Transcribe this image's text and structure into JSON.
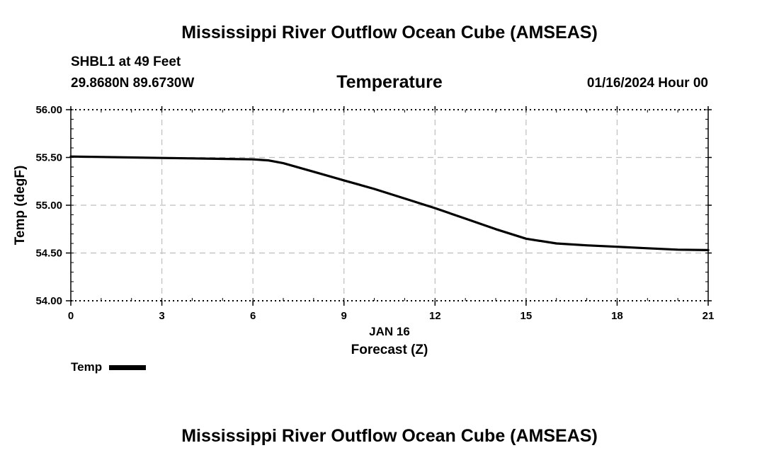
{
  "page": {
    "title_top": "Mississippi River Outflow Ocean Cube (AMSEAS)",
    "title_bottom": "Mississippi River Outflow Ocean Cube (AMSEAS)",
    "station": "SHBL1 at 49 Feet",
    "coords": "29.8680N  89.6730W",
    "variable": "Temperature",
    "datetime": "01/16/2024 Hour 00"
  },
  "chart_data": {
    "type": "line",
    "ylabel": "Temp (degF)",
    "xlabel_date": "JAN 16",
    "xlabel": "Forecast (Z)",
    "xlim": [
      0,
      21
    ],
    "ylim": [
      54.0,
      56.0
    ],
    "x_ticks": [
      0,
      3,
      6,
      9,
      12,
      15,
      18,
      21
    ],
    "x_tick_labels": [
      "0",
      "3",
      "6",
      "9",
      "12",
      "15",
      "18",
      "21"
    ],
    "y_ticks": [
      54.0,
      54.5,
      55.0,
      55.5,
      56.0
    ],
    "y_tick_labels": [
      "54.00",
      "54.50",
      "55.00",
      "55.50",
      "56.00"
    ],
    "grid": true,
    "legend_position": "bottom-left",
    "series": [
      {
        "name": "Temp",
        "color": "#000000",
        "x": [
          0,
          1,
          2,
          3,
          4,
          5,
          6,
          6.5,
          7,
          8,
          9,
          10,
          11,
          12,
          13,
          14,
          15,
          16,
          17,
          18,
          19,
          20,
          21
        ],
        "values": [
          55.51,
          55.505,
          55.5,
          55.495,
          55.49,
          55.485,
          55.48,
          55.47,
          55.44,
          55.35,
          55.26,
          55.17,
          55.07,
          54.97,
          54.86,
          54.75,
          54.65,
          54.6,
          54.58,
          54.565,
          54.55,
          54.535,
          54.53
        ]
      }
    ]
  }
}
